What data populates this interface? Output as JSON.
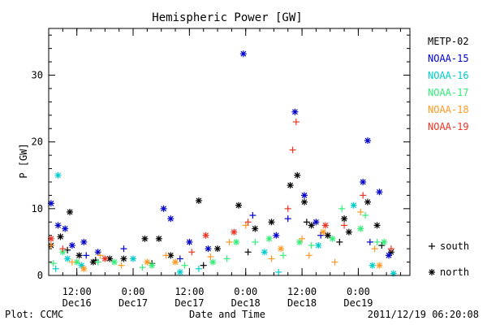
{
  "chart_data": {
    "type": "scatter",
    "title": "Hemispheric Power [GW]",
    "ylabel": "P [GW]",
    "xlabel": "Date and Time",
    "ylim": [
      0,
      37
    ],
    "xlim": [
      "2011-12-16 06:00",
      "2011-12-19 11:00"
    ],
    "y_ticks": [
      0,
      10,
      20,
      30
    ],
    "x_ticks": [
      {
        "t": "2011-12-16 12:00",
        "top": "12:00",
        "bottom": "Dec16"
      },
      {
        "t": "2011-12-17 00:00",
        "top": "0:00",
        "bottom": "Dec17"
      },
      {
        "t": "2011-12-17 12:00",
        "top": "12:00",
        "bottom": "Dec17"
      },
      {
        "t": "2011-12-18 00:00",
        "top": "0:00",
        "bottom": "Dec18"
      },
      {
        "t": "2011-12-18 12:00",
        "top": "12:00",
        "bottom": "Dec18"
      },
      {
        "t": "2011-12-19 00:00",
        "top": "0:00",
        "bottom": "Dec19"
      }
    ],
    "marker_legend": [
      {
        "symbol": "+",
        "label": "south"
      },
      {
        "symbol": "*",
        "label": "north"
      }
    ],
    "series": [
      {
        "name": "METP-02",
        "color": "#000000",
        "points": [
          {
            "t": "2011-12-16 06:30",
            "hemi": "north",
            "y": 4.5
          },
          {
            "t": "2011-12-16 08:30",
            "hemi": "north",
            "y": 5.8
          },
          {
            "t": "2011-12-16 10:30",
            "hemi": "north",
            "y": 9.5
          },
          {
            "t": "2011-12-16 12:30",
            "hemi": "north",
            "y": 3.0
          },
          {
            "t": "2011-12-16 15:30",
            "hemi": "north",
            "y": 2.0
          },
          {
            "t": "2011-12-16 19:00",
            "hemi": "north",
            "y": 2.5
          },
          {
            "t": "2011-12-16 22:00",
            "hemi": "north",
            "y": 2.5
          },
          {
            "t": "2011-12-17 02:30",
            "hemi": "north",
            "y": 5.5
          },
          {
            "t": "2011-12-17 05:30",
            "hemi": "north",
            "y": 5.5
          },
          {
            "t": "2011-12-17 08:00",
            "hemi": "north",
            "y": 3.0
          },
          {
            "t": "2011-12-17 14:00",
            "hemi": "north",
            "y": 11.2
          },
          {
            "t": "2011-12-17 18:00",
            "hemi": "north",
            "y": 4.0
          },
          {
            "t": "2011-12-17 22:30",
            "hemi": "north",
            "y": 10.5
          },
          {
            "t": "2011-12-18 02:00",
            "hemi": "north",
            "y": 7.0
          },
          {
            "t": "2011-12-18 05:30",
            "hemi": "north",
            "y": 8.0
          },
          {
            "t": "2011-12-18 09:30",
            "hemi": "north",
            "y": 13.5
          },
          {
            "t": "2011-12-18 11:00",
            "hemi": "north",
            "y": 15.0
          },
          {
            "t": "2011-12-18 12:30",
            "hemi": "north",
            "y": 11.0
          },
          {
            "t": "2011-12-18 14:00",
            "hemi": "north",
            "y": 7.5
          },
          {
            "t": "2011-12-18 17:30",
            "hemi": "north",
            "y": 6.0
          },
          {
            "t": "2011-12-18 21:00",
            "hemi": "north",
            "y": 8.5
          },
          {
            "t": "2011-12-18 22:00",
            "hemi": "north",
            "y": 6.5
          },
          {
            "t": "2011-12-19 02:00",
            "hemi": "north",
            "y": 11.0
          },
          {
            "t": "2011-12-19 04:00",
            "hemi": "north",
            "y": 7.5
          },
          {
            "t": "2011-12-19 07:00",
            "hemi": "north",
            "y": 3.5
          },
          {
            "t": "2011-12-16 10:00",
            "hemi": "south",
            "y": 3.8
          },
          {
            "t": "2011-12-16 16:00",
            "hemi": "south",
            "y": 2.3
          },
          {
            "t": "2011-12-17 04:00",
            "hemi": "south",
            "y": 1.8
          },
          {
            "t": "2011-12-17 15:00",
            "hemi": "south",
            "y": 1.5
          },
          {
            "t": "2011-12-18 00:30",
            "hemi": "south",
            "y": 3.5
          },
          {
            "t": "2011-12-18 13:00",
            "hemi": "south",
            "y": 8.0
          },
          {
            "t": "2011-12-18 20:00",
            "hemi": "south",
            "y": 5.0
          },
          {
            "t": "2011-12-19 05:00",
            "hemi": "south",
            "y": 4.5
          }
        ]
      },
      {
        "name": "NOAA-15",
        "color": "#0000cc",
        "points": [
          {
            "t": "2011-12-16 06:30",
            "hemi": "north",
            "y": 10.8
          },
          {
            "t": "2011-12-16 08:00",
            "hemi": "north",
            "y": 7.5
          },
          {
            "t": "2011-12-16 09:30",
            "hemi": "north",
            "y": 7.0
          },
          {
            "t": "2011-12-16 11:00",
            "hemi": "north",
            "y": 4.5
          },
          {
            "t": "2011-12-16 13:30",
            "hemi": "north",
            "y": 5.0
          },
          {
            "t": "2011-12-16 16:30",
            "hemi": "north",
            "y": 3.5
          },
          {
            "t": "2011-12-17 06:30",
            "hemi": "north",
            "y": 10.0
          },
          {
            "t": "2011-12-17 08:00",
            "hemi": "north",
            "y": 8.5
          },
          {
            "t": "2011-12-17 12:00",
            "hemi": "north",
            "y": 5.0
          },
          {
            "t": "2011-12-17 16:00",
            "hemi": "north",
            "y": 4.0
          },
          {
            "t": "2011-12-17 23:30",
            "hemi": "north",
            "y": 33.2
          },
          {
            "t": "2011-12-18 06:30",
            "hemi": "north",
            "y": 6.0
          },
          {
            "t": "2011-12-18 10:30",
            "hemi": "north",
            "y": 24.5
          },
          {
            "t": "2011-12-18 12:30",
            "hemi": "north",
            "y": 12.0
          },
          {
            "t": "2011-12-18 15:00",
            "hemi": "north",
            "y": 8.0
          },
          {
            "t": "2011-12-19 01:00",
            "hemi": "north",
            "y": 14.0
          },
          {
            "t": "2011-12-19 02:00",
            "hemi": "north",
            "y": 20.2
          },
          {
            "t": "2011-12-19 04:30",
            "hemi": "north",
            "y": 12.5
          },
          {
            "t": "2011-12-19 06:30",
            "hemi": "north",
            "y": 3.0
          },
          {
            "t": "2011-12-16 14:00",
            "hemi": "south",
            "y": 3.0
          },
          {
            "t": "2011-12-16 22:00",
            "hemi": "south",
            "y": 4.0
          },
          {
            "t": "2011-12-17 10:00",
            "hemi": "south",
            "y": 2.5
          },
          {
            "t": "2011-12-18 01:30",
            "hemi": "south",
            "y": 9.0
          },
          {
            "t": "2011-12-18 09:00",
            "hemi": "south",
            "y": 8.5
          },
          {
            "t": "2011-12-18 16:00",
            "hemi": "south",
            "y": 6.0
          },
          {
            "t": "2011-12-19 02:30",
            "hemi": "south",
            "y": 5.0
          }
        ]
      },
      {
        "name": "NOAA-16",
        "color": "#00cccc",
        "points": [
          {
            "t": "2011-12-16 08:00",
            "hemi": "north",
            "y": 15.0
          },
          {
            "t": "2011-12-16 10:00",
            "hemi": "north",
            "y": 2.5
          },
          {
            "t": "2011-12-16 13:00",
            "hemi": "north",
            "y": 1.5
          },
          {
            "t": "2011-12-17 00:00",
            "hemi": "north",
            "y": 2.5
          },
          {
            "t": "2011-12-17 10:00",
            "hemi": "north",
            "y": 0.5
          },
          {
            "t": "2011-12-18 04:00",
            "hemi": "north",
            "y": 3.5
          },
          {
            "t": "2011-12-18 15:30",
            "hemi": "north",
            "y": 4.5
          },
          {
            "t": "2011-12-18 23:00",
            "hemi": "north",
            "y": 10.5
          },
          {
            "t": "2011-12-19 03:00",
            "hemi": "north",
            "y": 1.5
          },
          {
            "t": "2011-12-19 07:30",
            "hemi": "north",
            "y": 0.3
          },
          {
            "t": "2011-12-16 07:30",
            "hemi": "south",
            "y": 1.0
          },
          {
            "t": "2011-12-17 14:00",
            "hemi": "south",
            "y": 1.0
          },
          {
            "t": "2011-12-18 07:00",
            "hemi": "south",
            "y": 0.5
          }
        ]
      },
      {
        "name": "NOAA-17",
        "color": "#33ee77",
        "points": [
          {
            "t": "2011-12-16 09:00",
            "hemi": "north",
            "y": 3.5
          },
          {
            "t": "2011-12-16 12:00",
            "hemi": "north",
            "y": 2.0
          },
          {
            "t": "2011-12-16 20:00",
            "hemi": "north",
            "y": 2.0
          },
          {
            "t": "2011-12-17 04:00",
            "hemi": "north",
            "y": 1.5
          },
          {
            "t": "2011-12-17 17:00",
            "hemi": "north",
            "y": 2.0
          },
          {
            "t": "2011-12-17 22:00",
            "hemi": "north",
            "y": 5.0
          },
          {
            "t": "2011-12-18 05:00",
            "hemi": "north",
            "y": 5.5
          },
          {
            "t": "2011-12-18 11:30",
            "hemi": "north",
            "y": 5.0
          },
          {
            "t": "2011-12-18 18:30",
            "hemi": "north",
            "y": 5.5
          },
          {
            "t": "2011-12-19 00:30",
            "hemi": "north",
            "y": 7.0
          },
          {
            "t": "2011-12-19 05:30",
            "hemi": "north",
            "y": 5.0
          },
          {
            "t": "2011-12-16 07:00",
            "hemi": "south",
            "y": 1.8
          },
          {
            "t": "2011-12-16 16:30",
            "hemi": "south",
            "y": 2.0
          },
          {
            "t": "2011-12-17 02:00",
            "hemi": "south",
            "y": 1.2
          },
          {
            "t": "2011-12-17 11:00",
            "hemi": "south",
            "y": 1.5
          },
          {
            "t": "2011-12-17 20:00",
            "hemi": "south",
            "y": 2.5
          },
          {
            "t": "2011-12-18 02:00",
            "hemi": "south",
            "y": 5.0
          },
          {
            "t": "2011-12-18 08:00",
            "hemi": "south",
            "y": 3.0
          },
          {
            "t": "2011-12-18 14:00",
            "hemi": "south",
            "y": 4.5
          },
          {
            "t": "2011-12-18 20:30",
            "hemi": "south",
            "y": 10.0
          },
          {
            "t": "2011-12-19 01:30",
            "hemi": "south",
            "y": 9.0
          },
          {
            "t": "2011-12-19 04:00",
            "hemi": "south",
            "y": 5.0
          }
        ]
      },
      {
        "name": "NOAA-18",
        "color": "#ff9922",
        "points": [
          {
            "t": "2011-12-16 13:30",
            "hemi": "north",
            "y": 1.0
          },
          {
            "t": "2011-12-17 03:00",
            "hemi": "north",
            "y": 2.0
          },
          {
            "t": "2011-12-17 09:00",
            "hemi": "north",
            "y": 2.0
          },
          {
            "t": "2011-12-18 07:30",
            "hemi": "north",
            "y": 4.0
          },
          {
            "t": "2011-12-18 16:30",
            "hemi": "north",
            "y": 6.5
          },
          {
            "t": "2011-12-19 04:30",
            "hemi": "north",
            "y": 1.5
          },
          {
            "t": "2011-12-16 06:30",
            "hemi": "south",
            "y": 4.5
          },
          {
            "t": "2011-12-16 11:00",
            "hemi": "south",
            "y": 2.0
          },
          {
            "t": "2011-12-16 17:00",
            "hemi": "south",
            "y": 3.0
          },
          {
            "t": "2011-12-16 21:30",
            "hemi": "south",
            "y": 1.5
          },
          {
            "t": "2011-12-17 07:00",
            "hemi": "south",
            "y": 3.0
          },
          {
            "t": "2011-12-17 16:30",
            "hemi": "south",
            "y": 2.8
          },
          {
            "t": "2011-12-17 20:30",
            "hemi": "south",
            "y": 5.0
          },
          {
            "t": "2011-12-18 00:00",
            "hemi": "south",
            "y": 7.5
          },
          {
            "t": "2011-12-18 05:30",
            "hemi": "south",
            "y": 2.5
          },
          {
            "t": "2011-12-18 12:00",
            "hemi": "south",
            "y": 5.5
          },
          {
            "t": "2011-12-18 13:30",
            "hemi": "south",
            "y": 3.0
          },
          {
            "t": "2011-12-18 19:00",
            "hemi": "south",
            "y": 2.0
          },
          {
            "t": "2011-12-19 00:30",
            "hemi": "south",
            "y": 9.5
          },
          {
            "t": "2011-12-19 03:30",
            "hemi": "south",
            "y": 4.0
          }
        ]
      },
      {
        "name": "NOAA-19",
        "color": "#ee3322",
        "points": [
          {
            "t": "2011-12-16 06:30",
            "hemi": "north",
            "y": 5.5
          },
          {
            "t": "2011-12-16 18:00",
            "hemi": "north",
            "y": 2.5
          },
          {
            "t": "2011-12-17 15:30",
            "hemi": "north",
            "y": 6.0
          },
          {
            "t": "2011-12-17 21:30",
            "hemi": "north",
            "y": 6.5
          },
          {
            "t": "2011-12-18 17:00",
            "hemi": "north",
            "y": 7.5
          },
          {
            "t": "2011-12-16 09:00",
            "hemi": "south",
            "y": 4.0
          },
          {
            "t": "2011-12-17 12:30",
            "hemi": "south",
            "y": 3.5
          },
          {
            "t": "2011-12-18 00:30",
            "hemi": "south",
            "y": 8.0
          },
          {
            "t": "2011-12-18 09:00",
            "hemi": "south",
            "y": 10.0
          },
          {
            "t": "2011-12-18 10:00",
            "hemi": "south",
            "y": 18.8
          },
          {
            "t": "2011-12-18 10:45",
            "hemi": "south",
            "y": 23.0
          },
          {
            "t": "2011-12-18 21:00",
            "hemi": "south",
            "y": 7.5
          },
          {
            "t": "2011-12-19 01:00",
            "hemi": "south",
            "y": 12.0
          },
          {
            "t": "2011-12-19 07:00",
            "hemi": "south",
            "y": 4.0
          }
        ]
      }
    ]
  },
  "footer": {
    "left": "Plot: CCMC",
    "right": "2011/12/19 06:20:08"
  }
}
